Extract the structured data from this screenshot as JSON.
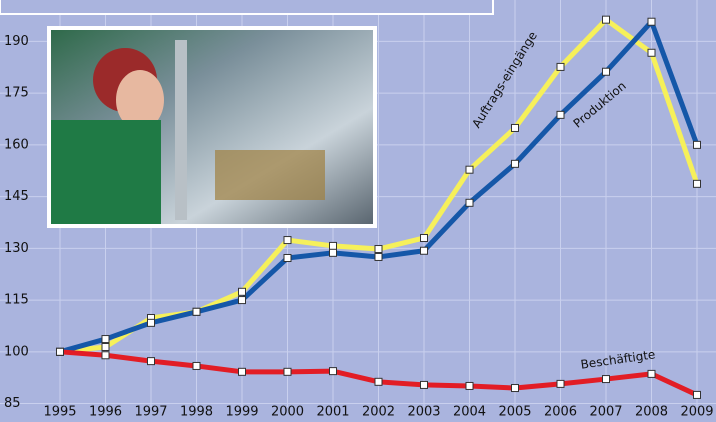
{
  "chart_data": {
    "type": "line",
    "categories": [
      "1995",
      "1996",
      "1997",
      "1998",
      "1999",
      "2000",
      "2001",
      "2002",
      "2003",
      "2004",
      "2005",
      "2006",
      "2007",
      "2008",
      "2009"
    ],
    "series": [
      {
        "name": "Auftrags-eingänge",
        "color": "#f6f05a",
        "values": [
          100,
          101.4,
          109.8,
          111.6,
          117.4,
          132.4,
          130.7,
          129.8,
          133,
          152.8,
          164.9,
          182.6,
          196.3,
          186.7,
          148.7
        ]
      },
      {
        "name": "Produktion",
        "color": "#1557a8",
        "values": [
          100,
          103.7,
          108.4,
          111.6,
          115,
          127.2,
          128.7,
          127.5,
          129.3,
          143.2,
          154.5,
          168.7,
          181.2,
          195.7,
          160
        ]
      },
      {
        "name": "Beschäftigte",
        "color": "#e21d25",
        "values": [
          100,
          99,
          97.3,
          95.9,
          94.2,
          94.2,
          94.4,
          91.3,
          90.4,
          90.1,
          89.5,
          90.7,
          92.1,
          93.6,
          87.5
        ]
      }
    ],
    "ylim": [
      84,
      202
    ],
    "yticks": [
      85,
      100,
      115,
      130,
      145,
      160,
      175,
      190
    ],
    "grid": true
  }
}
